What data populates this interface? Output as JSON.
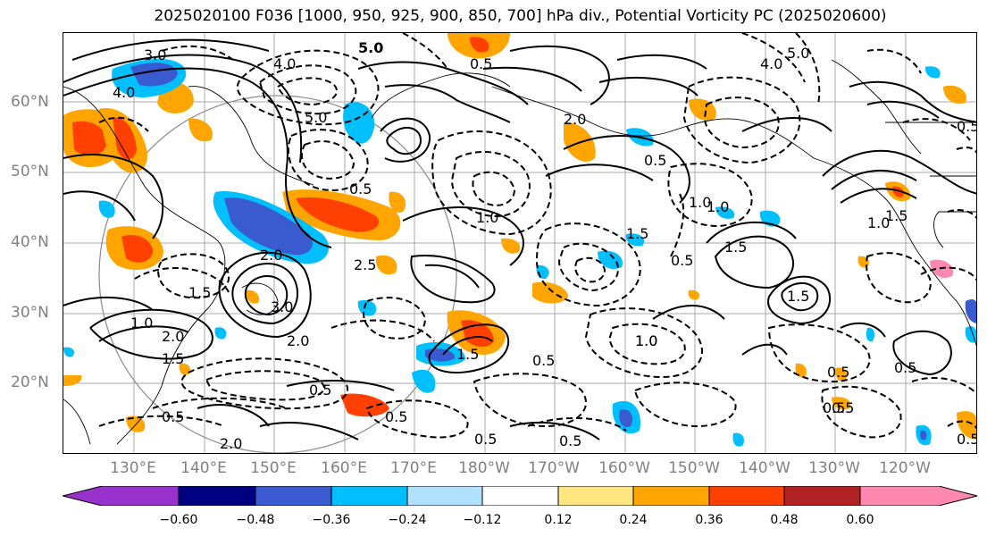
{
  "title": "2025020100 F036 [1000, 950, 925, 900, 850, 700] hPa div., Potential Vorticity PC (2025020600)",
  "lat_labels": [
    "60°N",
    "50°N",
    "40°N",
    "30°N",
    "20°N"
  ],
  "lon_labels": [
    "130°E",
    "140°E",
    "150°E",
    "160°E",
    "170°E",
    "180°W",
    "170°W",
    "160°W",
    "150°W",
    "140°W",
    "130°W",
    "120°W"
  ],
  "colorbar": {
    "colors": [
      "#9932cc",
      "#000080",
      "#3a5bd0",
      "#00bfff",
      "#b0e2ff",
      "#ffffff",
      "#ffe680",
      "#ffa500",
      "#ff4000",
      "#b22222",
      "#ff88b0"
    ],
    "tick_labels": [
      "−0.60",
      "−0.48",
      "−0.36",
      "−0.24",
      "−0.12",
      "0.12",
      "0.24",
      "0.36",
      "0.48",
      "0.60"
    ]
  },
  "contour_labels": [
    "5.0",
    "4.0",
    "3.0",
    "4.0",
    "5.0",
    "0.5",
    "4.0",
    "2.0",
    "5.0",
    "0.5",
    "0.5",
    "1.0",
    "1.0",
    "1.5",
    "2.0",
    "3.0",
    "1.5",
    "2.0",
    "1.0",
    "1.5",
    "2.0",
    "2.5",
    "1.5",
    "1.0",
    "0.5",
    "1.5",
    "0.5",
    "1.0",
    "1.5",
    "0.5",
    "0.5",
    "0.5",
    "1.0",
    "1.5",
    "0.5",
    "0.5",
    "0.5",
    "0.5",
    "2.0",
    "0.5",
    "1.0",
    "0.5",
    "0.5",
    "0.5"
  ]
}
